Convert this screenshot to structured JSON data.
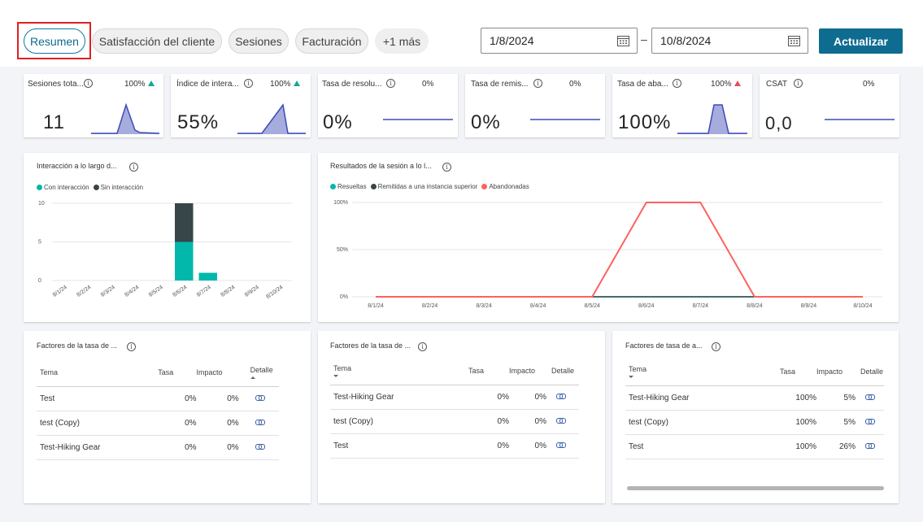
{
  "tabs": [
    {
      "label": "Resumen",
      "active": true
    },
    {
      "label": "Satisfacción del cliente"
    },
    {
      "label": "Sesiones"
    },
    {
      "label": "Facturación"
    },
    {
      "label": "+1 más"
    }
  ],
  "date_range": {
    "start": "1/8/2024",
    "separator": "–",
    "end": "10/8/2024"
  },
  "update_button": "Actualizar",
  "kpis": [
    {
      "title": "Sesiones tota...",
      "pct": "100%",
      "trend": "up",
      "value": "11"
    },
    {
      "title": "Índice de intera...",
      "pct": "100%",
      "trend": "up",
      "value": "55%"
    },
    {
      "title": "Tasa de resolu...",
      "pct": "0%",
      "trend": "",
      "value": "0%"
    },
    {
      "title": "Tasa de remis...",
      "pct": "0%",
      "trend": "",
      "value": "0%"
    },
    {
      "title": "Tasa de aba...",
      "pct": "100%",
      "trend": "up-bad",
      "value": "100%"
    },
    {
      "title": "CSAT",
      "pct": "0%",
      "trend": "",
      "value": "0,0"
    }
  ],
  "colors": {
    "teal": "#01b8aa",
    "dark": "#374649",
    "red": "#fd625e",
    "accent": "#0f6c91",
    "spark": "#3d4bb8",
    "trend_up": "#1aa39a",
    "trend_bad": "#e0505c"
  },
  "engagement_chart": {
    "title": "Interacción a lo largo d...",
    "legend": [
      "Con interacción",
      "Sin interacción"
    ]
  },
  "outcome_chart": {
    "title": "Resultados de la sesión a lo l...",
    "legend": [
      "Resueltas",
      "Remitidas a una instancia superior",
      "Abandonadas"
    ]
  },
  "chart_data": [
    {
      "type": "bar",
      "stacked": true,
      "categories": [
        "8/1/24",
        "8/2/24",
        "8/3/24",
        "8/4/24",
        "8/5/24",
        "8/6/24",
        "8/7/24",
        "8/8/24",
        "8/9/24",
        "8/10/24"
      ],
      "series": [
        {
          "name": "Con interacción",
          "values": [
            0,
            0,
            0,
            0,
            0,
            5,
            1,
            0,
            0,
            0
          ]
        },
        {
          "name": "Sin interacción",
          "values": [
            0,
            0,
            0,
            0,
            0,
            5,
            0,
            0,
            0,
            0
          ]
        }
      ],
      "yticks": [
        "0",
        "5",
        "10"
      ],
      "ylim": [
        0,
        10
      ],
      "legend": "top-left",
      "grid": true
    },
    {
      "type": "line",
      "categories": [
        "8/1/24",
        "8/2/24",
        "8/3/24",
        "8/4/24",
        "8/5/24",
        "8/6/24",
        "8/7/24",
        "8/8/24",
        "8/9/24",
        "8/10/24"
      ],
      "series": [
        {
          "name": "Resueltas",
          "values": [
            0,
            0,
            0,
            0,
            0,
            0,
            0,
            0,
            0,
            0
          ]
        },
        {
          "name": "Remitidas a una instancia superior",
          "values": [
            0,
            0,
            0,
            0,
            0,
            0,
            0,
            0,
            0,
            0
          ]
        },
        {
          "name": "Abandonadas",
          "values": [
            0,
            0,
            0,
            0,
            0,
            100,
            100,
            0,
            0,
            0
          ]
        }
      ],
      "yticks": [
        "0%",
        "50%",
        "100%"
      ],
      "ylim": [
        0,
        100
      ],
      "legend": "top-left",
      "grid": true
    }
  ],
  "tables": [
    {
      "title": "Factores de la tasa de ...",
      "headers": [
        "Tema",
        "Tasa",
        "Impacto",
        "Detalle"
      ],
      "rows": [
        {
          "tema": "Test",
          "tasa": "0%",
          "impacto": "0%"
        },
        {
          "tema": "test (Copy)",
          "tasa": "0%",
          "impacto": "0%"
        },
        {
          "tema": "Test-Hiking Gear",
          "tasa": "0%",
          "impacto": "0%"
        }
      ]
    },
    {
      "title": "Factores de la tasa de ...",
      "headers": [
        "Tema",
        "Tasa",
        "Impacto",
        "Detalle"
      ],
      "rows": [
        {
          "tema": "Test-Hiking Gear",
          "tasa": "0%",
          "impacto": "0%"
        },
        {
          "tema": "test (Copy)",
          "tasa": "0%",
          "impacto": "0%"
        },
        {
          "tema": "Test",
          "tasa": "0%",
          "impacto": "0%"
        }
      ]
    },
    {
      "title": "Factores de tasa de a...",
      "headers": [
        "Tema",
        "Tasa",
        "Impacto",
        "Detalle"
      ],
      "rows": [
        {
          "tema": "Test-Hiking Gear",
          "tasa": "100%",
          "impacto": "5%"
        },
        {
          "tema": "test (Copy)",
          "tasa": "100%",
          "impacto": "5%"
        },
        {
          "tema": "Test",
          "tasa": "100%",
          "impacto": "26%"
        }
      ]
    }
  ]
}
